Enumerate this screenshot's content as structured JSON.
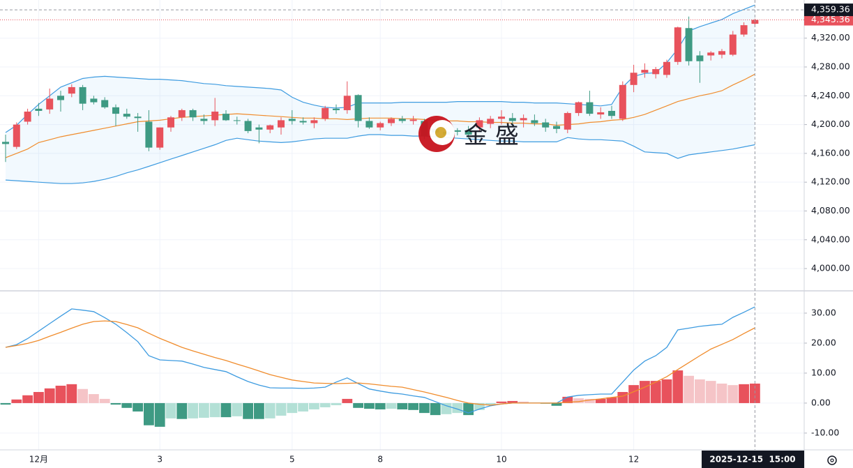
{
  "chart_data": [
    {
      "type": "candlestick",
      "categories": [
        null,
        null,
        null,
        "12月",
        null,
        null,
        null,
        null,
        null,
        null,
        null,
        null,
        null,
        null,
        "3",
        null,
        null,
        null,
        null,
        null,
        null,
        null,
        null,
        null,
        null,
        null,
        "5",
        null,
        null,
        null,
        null,
        null,
        null,
        null,
        "8",
        null,
        null,
        null,
        null,
        null,
        null,
        null,
        null,
        null,
        null,
        "10",
        null,
        null,
        null,
        null,
        null,
        null,
        null,
        null,
        null,
        null,
        null,
        "12",
        null,
        null,
        null,
        null,
        null,
        null,
        null,
        null,
        null,
        null,
        null
      ],
      "open": [
        4176,
        4169,
        4204,
        4222,
        4221,
        4240,
        4243,
        4252,
        4236,
        4234,
        4224,
        4215,
        4211,
        4204,
        4168,
        4196,
        4210,
        4220,
        4208,
        4206,
        4215,
        4206,
        4205,
        4196,
        4193,
        4196,
        4208,
        4205,
        4202,
        4208,
        4222,
        4220,
        4241,
        4205,
        4196,
        4202,
        4208,
        4205,
        4205,
        4194,
        4190,
        4192,
        4192,
        4196,
        4201,
        4208,
        4209,
        4206,
        4206,
        4203,
        4198,
        4193,
        4216,
        4231,
        4214,
        4219,
        4208,
        4255,
        4272,
        4270,
        4269,
        4287,
        4334,
        4296,
        4296,
        4297,
        4297,
        4325,
        4340
      ],
      "high": [
        4186,
        4203,
        4222,
        4230,
        4250,
        4247,
        4256,
        4255,
        4240,
        4238,
        4228,
        4222,
        4216,
        4220,
        4196,
        4212,
        4222,
        4222,
        4214,
        4237,
        4220,
        4211,
        4208,
        4200,
        4200,
        4210,
        4220,
        4210,
        4210,
        4226,
        4228,
        4260,
        4242,
        4210,
        4204,
        4210,
        4212,
        4212,
        4208,
        4200,
        4196,
        4195,
        4198,
        4210,
        4212,
        4220,
        4216,
        4214,
        4214,
        4208,
        4204,
        4218,
        4232,
        4247,
        4224,
        4226,
        4260,
        4283,
        4285,
        4280,
        4290,
        4336,
        4350,
        4302,
        4302,
        4305,
        4330,
        4342,
        4347
      ],
      "low": [
        4148,
        4166,
        4200,
        4212,
        4215,
        4218,
        4238,
        4220,
        4228,
        4222,
        4198,
        4208,
        4190,
        4163,
        4165,
        4190,
        4205,
        4205,
        4200,
        4198,
        4205,
        4200,
        4188,
        4174,
        4188,
        4186,
        4200,
        4200,
        4195,
        4205,
        4215,
        4215,
        4196,
        4194,
        4192,
        4198,
        4202,
        4200,
        4180,
        4182,
        4185,
        4185,
        4180,
        4190,
        4195,
        4200,
        4198,
        4196,
        4198,
        4190,
        4188,
        4188,
        4212,
        4212,
        4208,
        4208,
        4205,
        4245,
        4265,
        4264,
        4265,
        4283,
        4282,
        4258,
        4289,
        4292,
        4295,
        4322,
        4336
      ],
      "close": [
        4173,
        4200,
        4218,
        4219,
        4236,
        4234,
        4252,
        4229,
        4231,
        4224,
        4215,
        4211,
        4209,
        4168,
        4196,
        4210,
        4220,
        4210,
        4205,
        4218,
        4206,
        4205,
        4191,
        4193,
        4199,
        4206,
        4205,
        4203,
        4206,
        4223,
        4220,
        4240,
        4205,
        4196,
        4202,
        4208,
        4205,
        4207,
        4184,
        4189,
        4186,
        4190,
        4186,
        4206,
        4208,
        4211,
        4205,
        4209,
        4202,
        4196,
        4194,
        4216,
        4231,
        4215,
        4217,
        4212,
        4255,
        4272,
        4276,
        4277,
        4287,
        4335,
        4288,
        4288,
        4300,
        4302,
        4325,
        4338,
        4345.36
      ],
      "up_color": "#e8525c",
      "down_color": "#3e9a83",
      "bands": {
        "upper": [
          4189,
          4199,
          4214,
          4228,
          4240,
          4252,
          4258,
          4264,
          4266,
          4267,
          4266,
          4265,
          4264,
          4263,
          4263,
          4262,
          4261,
          4259,
          4257,
          4256,
          4254,
          4253,
          4252,
          4251,
          4250,
          4248,
          4238,
          4231,
          4227,
          4224,
          4223,
          4224,
          4230,
          4230,
          4230,
          4230,
          4231,
          4231,
          4231,
          4231,
          4231,
          4232,
          4232,
          4232,
          4232,
          4232,
          4231,
          4231,
          4230,
          4230,
          4230,
          4229,
          4228,
          4227,
          4226,
          4228,
          4252,
          4267,
          4271,
          4272,
          4286,
          4305,
          4330,
          4336,
          4341,
          4346,
          4354,
          4360,
          4366
        ],
        "middle": [
          4154,
          4160,
          4166,
          4175,
          4179,
          4183,
          4186,
          4189,
          4192,
          4195,
          4198,
          4201,
          4204,
          4205,
          4206,
          4208,
          4210,
          4211,
          4212,
          4213,
          4214,
          4215,
          4214,
          4213,
          4212,
          4211,
          4210,
          4209,
          4209,
          4208,
          4208,
          4207,
          4208,
          4209,
          4209,
          4209,
          4208,
          4208,
          4207,
          4206,
          4205,
          4205,
          4204,
          4204,
          4203,
          4203,
          4202,
          4202,
          4201,
          4201,
          4199,
          4200,
          4201,
          4203,
          4204,
          4206,
          4207,
          4210,
          4214,
          4220,
          4226,
          4232,
          4236,
          4240,
          4243,
          4247,
          4255,
          4262,
          4270
        ],
        "lower": [
          4123,
          4122,
          4121,
          4120,
          4119,
          4118,
          4118,
          4119,
          4121,
          4124,
          4128,
          4133,
          4137,
          4142,
          4147,
          4152,
          4157,
          4162,
          4167,
          4172,
          4178,
          4181,
          4179,
          4177,
          4176,
          4175,
          4176,
          4178,
          4180,
          4181,
          4181,
          4181,
          4184,
          4186,
          4186,
          4185,
          4185,
          4184,
          4184,
          4183,
          4182,
          4181,
          4180,
          4179,
          4178,
          4177,
          4177,
          4176,
          4176,
          4176,
          4176,
          4182,
          4180,
          4179,
          4179,
          4178,
          4177,
          4170,
          4162,
          4161,
          4160,
          4153,
          4158,
          4160,
          4162,
          4164,
          4166,
          4169,
          4172
        ],
        "band_color": "#3d9be0",
        "middle_color": "#f08c2c",
        "fill_color": "#2196f3"
      },
      "ylim": [
        3971,
        4373
      ],
      "yticks": [
        {
          "value": 4000,
          "label": "4,000.00"
        },
        {
          "value": 4040,
          "label": "4,040.00"
        },
        {
          "value": 4080,
          "label": "4,080.00"
        },
        {
          "value": 4120,
          "label": "4,120.00"
        },
        {
          "value": 4160,
          "label": "4,160.00"
        },
        {
          "value": 4200,
          "label": "4,200.00"
        },
        {
          "value": 4240,
          "label": "4,240.00"
        },
        {
          "value": 4280,
          "label": "4,280.00"
        },
        {
          "value": 4320,
          "label": "4,320.00"
        }
      ],
      "grid": true,
      "last_price": {
        "value": 4345.36,
        "label": "4,345.36"
      },
      "crosshair_price": {
        "value": 4359.36,
        "label": "4,359.36"
      },
      "crosshair_time": "2025-12-15  15:00",
      "watermark": "金 盛"
    },
    {
      "type": "macd",
      "histogram": [
        -0.5,
        1.2,
        2.6,
        3.7,
        4.9,
        5.8,
        6.3,
        4.7,
        3,
        1.4,
        -0.5,
        -1.6,
        -2.8,
        -7.4,
        -7.9,
        -5.1,
        -5.3,
        -5.1,
        -4.9,
        -4.7,
        -4.7,
        -4.4,
        -5.3,
        -5.3,
        -5.1,
        -4.2,
        -3.3,
        -2.8,
        -2.1,
        -1.4,
        -0.7,
        1.4,
        -1.6,
        -1.9,
        -2.1,
        -1.9,
        -2.1,
        -2.3,
        -3.3,
        -4,
        -3.7,
        -3.3,
        -4,
        -2.3,
        -0.7,
        0.5,
        0.7,
        0.5,
        0.2,
        -0.2,
        -0.9,
        2.1,
        1.6,
        1.4,
        1.4,
        1.9,
        3.7,
        6,
        7.4,
        7.4,
        7.9,
        10.9,
        9.1,
        7.9,
        7.4,
        6.5,
        6,
        6.3,
        6.5
      ],
      "macd": [
        18.6,
        19.5,
        21.5,
        24,
        26.5,
        29,
        31.4,
        31,
        30.5,
        28.5,
        26.3,
        23.5,
        20.5,
        15.8,
        14.4,
        14.2,
        14,
        13,
        11.9,
        11.2,
        10.5,
        8.8,
        7.2,
        6,
        5.1,
        5,
        5,
        4.9,
        5,
        5.3,
        7,
        8.4,
        6.5,
        4.7,
        4,
        3.4,
        3,
        2.4,
        1.9,
        0.5,
        -0.9,
        -2,
        -3.3,
        -2,
        -0.9,
        -0.3,
        0,
        0,
        0,
        0,
        0,
        2,
        2.6,
        2.8,
        3,
        3,
        7,
        11,
        14,
        15.8,
        18.6,
        24.4,
        25,
        25.6,
        26,
        26.3,
        28.6,
        30.3,
        32.1
      ],
      "signal": [
        18.6,
        19.2,
        19.9,
        20.9,
        22.3,
        23.6,
        25,
        26.3,
        27.2,
        27.4,
        27.2,
        26.2,
        25.1,
        23.3,
        21.6,
        20.1,
        18.6,
        17.4,
        16.3,
        15.2,
        14.2,
        13,
        11.9,
        10.7,
        9.5,
        8.6,
        7.7,
        7.2,
        6.7,
        6.6,
        6.5,
        6.6,
        6.7,
        6.4,
        6,
        5.6,
        5.3,
        4.5,
        3.7,
        2.8,
        1.9,
        0.9,
        0,
        -0.4,
        -0.7,
        -0.3,
        0,
        0,
        0,
        0,
        0,
        0.3,
        0.5,
        1,
        1.4,
        1.9,
        2.3,
        3.8,
        5.3,
        7,
        8.8,
        11.2,
        13.5,
        15.8,
        18,
        19.6,
        21.2,
        23.2,
        25.1
      ],
      "macd_color": "#3d9be0",
      "signal_color": "#f08c2c",
      "rising_up_color": "#e8525c",
      "falling_up_color": "#f5c4c7",
      "falling_down_color": "#3e9a83",
      "rising_down_color": "#b3e0d6",
      "ylim": [
        -15.6,
        37.2
      ],
      "yticks": [
        {
          "value": -10,
          "label": "-10.00"
        },
        {
          "value": 0,
          "label": "0.00"
        },
        {
          "value": 10,
          "label": "10.00"
        },
        {
          "value": 20,
          "label": "20.00"
        },
        {
          "value": 30,
          "label": "30.00"
        }
      ],
      "grid": true
    }
  ]
}
